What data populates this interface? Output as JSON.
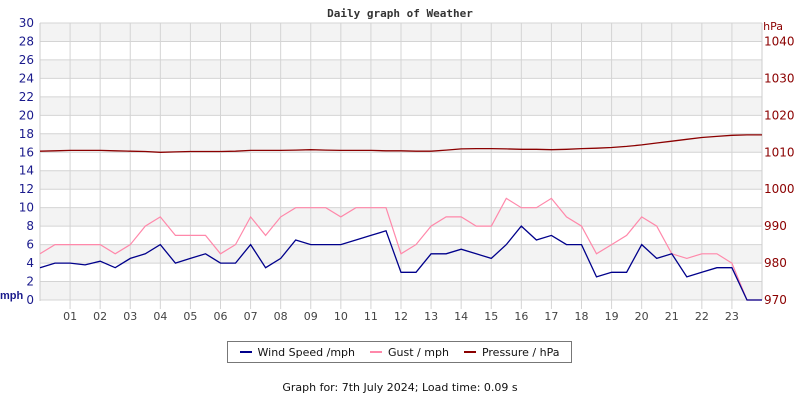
{
  "chart_data": {
    "type": "line",
    "title": "Daily graph of Weather",
    "x_tick_labels": [
      "01",
      "02",
      "03",
      "04",
      "05",
      "06",
      "07",
      "08",
      "09",
      "10",
      "11",
      "12",
      "13",
      "14",
      "15",
      "16",
      "17",
      "18",
      "19",
      "20",
      "21",
      "22",
      "23"
    ],
    "xlim": [
      0,
      24
    ],
    "left_axis": {
      "label": "mph",
      "ylim": [
        0,
        30
      ],
      "ticks": [
        0,
        2,
        4,
        6,
        8,
        10,
        12,
        14,
        16,
        18,
        20,
        22,
        24,
        26,
        28,
        30
      ],
      "color": "#1a1a8c"
    },
    "right_axis": {
      "label": "hPa",
      "ylim": [
        970,
        1045
      ],
      "ticks": [
        970,
        980,
        990,
        1000,
        1010,
        1020,
        1030,
        1040
      ],
      "color": "#8b0000"
    },
    "grid": true,
    "legend_placement": "bottom",
    "x": [
      0,
      0.5,
      1,
      1.5,
      2,
      2.5,
      3,
      3.5,
      4,
      4.5,
      5,
      5.5,
      6,
      6.5,
      7,
      7.5,
      8,
      8.5,
      9,
      9.5,
      10,
      10.5,
      11,
      11.5,
      12,
      12.5,
      13,
      13.5,
      14,
      14.5,
      15,
      15.5,
      16,
      16.5,
      17,
      17.5,
      18,
      18.5,
      19,
      19.5,
      20,
      20.5,
      21,
      21.5,
      22,
      22.5,
      23,
      23.5,
      24
    ],
    "series": [
      {
        "name": "Wind Speed /mph",
        "axis": "left",
        "color": "#00008b",
        "values": [
          3.5,
          4,
          4,
          3.8,
          4.2,
          3.5,
          4.5,
          5,
          6,
          4,
          4.5,
          5,
          4,
          4,
          6,
          3.5,
          4.5,
          6.5,
          6,
          6,
          6,
          6.5,
          7,
          7.5,
          3,
          3,
          5,
          5,
          5.5,
          5,
          4.5,
          6,
          8,
          6.5,
          7,
          6,
          6,
          2.5,
          3,
          3,
          6,
          4.5,
          5,
          2.5,
          3,
          3.5,
          3.5,
          0,
          0
        ]
      },
      {
        "name": "Gust / mph",
        "axis": "left",
        "color": "#ff88aa",
        "values": [
          5,
          6,
          6,
          6,
          6,
          5,
          6,
          8,
          9,
          7,
          7,
          7,
          5,
          6,
          9,
          7,
          9,
          10,
          10,
          10,
          9,
          10,
          10,
          10,
          5,
          6,
          8,
          9,
          9,
          8,
          8,
          11,
          10,
          10,
          11,
          9,
          8,
          5,
          6,
          7,
          9,
          8,
          5,
          4.5,
          5,
          5,
          4,
          0,
          0
        ]
      },
      {
        "name": "Pressure / hPa",
        "axis": "right",
        "color": "#8b0000",
        "values": [
          1010.3,
          1010.4,
          1010.5,
          1010.5,
          1010.5,
          1010.4,
          1010.3,
          1010.2,
          1010.0,
          1010.1,
          1010.2,
          1010.2,
          1010.2,
          1010.3,
          1010.5,
          1010.5,
          1010.5,
          1010.6,
          1010.7,
          1010.6,
          1010.5,
          1010.5,
          1010.5,
          1010.4,
          1010.4,
          1010.3,
          1010.3,
          1010.6,
          1010.9,
          1011.0,
          1011.0,
          1010.9,
          1010.8,
          1010.8,
          1010.7,
          1010.8,
          1011.0,
          1011.1,
          1011.3,
          1011.6,
          1012.0,
          1012.5,
          1013.0,
          1013.5,
          1014.0,
          1014.3,
          1014.6,
          1014.7,
          1014.7
        ]
      }
    ]
  },
  "legend": {
    "items": [
      "Wind Speed /mph",
      "Gust / mph",
      "Pressure / hPa"
    ]
  },
  "footer": "Graph for: 7th July 2024; Load time: 0.09 s"
}
